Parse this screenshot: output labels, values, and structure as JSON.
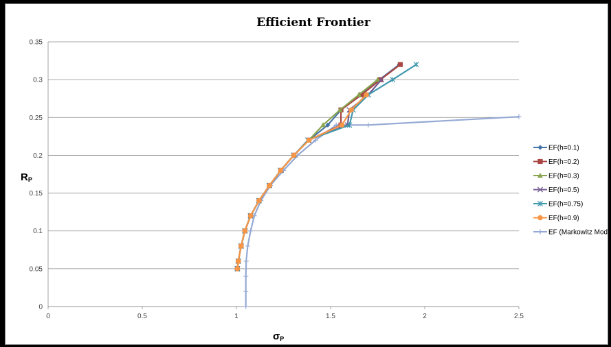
{
  "chart_data": {
    "type": "line",
    "title": "Efficient Frontier",
    "xlabel_main": "σ",
    "xlabel_sub": "P",
    "ylabel_main": "R",
    "ylabel_sub": "P",
    "xlim": [
      0,
      2.5
    ],
    "ylim": [
      0,
      0.35
    ],
    "x_ticks": [
      "0",
      "0.5",
      "1",
      "1.5",
      "2",
      "2.5"
    ],
    "x_tick_values": [
      0,
      0.5,
      1,
      1.5,
      2,
      2.5
    ],
    "y_ticks": [
      "0",
      "0.05",
      "0.1",
      "0.15",
      "0.2",
      "0.25",
      "0.3",
      "0.35"
    ],
    "y_tick_values": [
      0,
      0.05,
      0.1,
      0.15,
      0.2,
      0.25,
      0.3,
      0.35
    ],
    "grid": "horizontal",
    "legend_position": "right",
    "series": [
      {
        "name": "EF(h=0.1)",
        "color": "#4572a7",
        "marker": "diamond",
        "points": [
          [
            1.005,
            0.05
          ],
          [
            1.01,
            0.06
          ],
          [
            1.025,
            0.08
          ],
          [
            1.045,
            0.1
          ],
          [
            1.075,
            0.12
          ],
          [
            1.12,
            0.14
          ],
          [
            1.175,
            0.16
          ],
          [
            1.235,
            0.18
          ],
          [
            1.305,
            0.2
          ],
          [
            1.385,
            0.22
          ],
          [
            1.485,
            0.24
          ],
          [
            1.555,
            0.26
          ],
          [
            1.655,
            0.28
          ],
          [
            1.76,
            0.3
          ],
          [
            1.865,
            0.32
          ]
        ]
      },
      {
        "name": "EF(h=0.2)",
        "color": "#aa4643",
        "marker": "square",
        "points": [
          [
            1.005,
            0.05
          ],
          [
            1.01,
            0.06
          ],
          [
            1.025,
            0.08
          ],
          [
            1.045,
            0.1
          ],
          [
            1.075,
            0.12
          ],
          [
            1.12,
            0.14
          ],
          [
            1.175,
            0.16
          ],
          [
            1.235,
            0.18
          ],
          [
            1.305,
            0.2
          ],
          [
            1.385,
            0.22
          ],
          [
            1.555,
            0.24
          ],
          [
            1.555,
            0.26
          ],
          [
            1.665,
            0.28
          ],
          [
            1.765,
            0.3
          ],
          [
            1.87,
            0.32
          ]
        ]
      },
      {
        "name": "EF(h=0.3)",
        "color": "#89a54e",
        "marker": "triangle",
        "points": [
          [
            1.005,
            0.05
          ],
          [
            1.01,
            0.06
          ],
          [
            1.025,
            0.08
          ],
          [
            1.045,
            0.1
          ],
          [
            1.075,
            0.12
          ],
          [
            1.12,
            0.14
          ],
          [
            1.175,
            0.16
          ],
          [
            1.235,
            0.18
          ],
          [
            1.305,
            0.2
          ],
          [
            1.385,
            0.22
          ],
          [
            1.46,
            0.24
          ],
          [
            1.55,
            0.26
          ],
          [
            1.65,
            0.28
          ],
          [
            1.75,
            0.3
          ]
        ]
      },
      {
        "name": "EF(h=0.5)",
        "color": "#71588f",
        "marker": "x",
        "points": [
          [
            1.005,
            0.05
          ],
          [
            1.01,
            0.06
          ],
          [
            1.025,
            0.08
          ],
          [
            1.045,
            0.1
          ],
          [
            1.075,
            0.12
          ],
          [
            1.12,
            0.14
          ],
          [
            1.175,
            0.16
          ],
          [
            1.235,
            0.18
          ],
          [
            1.305,
            0.2
          ],
          [
            1.38,
            0.22
          ],
          [
            1.59,
            0.24
          ],
          [
            1.6,
            0.26
          ],
          [
            1.7,
            0.28
          ],
          [
            1.77,
            0.3
          ]
        ]
      },
      {
        "name": "EF(h=0.75)",
        "color": "#4198af",
        "marker": "asterisk",
        "points": [
          [
            1.005,
            0.05
          ],
          [
            1.01,
            0.06
          ],
          [
            1.025,
            0.08
          ],
          [
            1.045,
            0.1
          ],
          [
            1.075,
            0.12
          ],
          [
            1.12,
            0.14
          ],
          [
            1.175,
            0.16
          ],
          [
            1.235,
            0.18
          ],
          [
            1.305,
            0.2
          ],
          [
            1.38,
            0.22
          ],
          [
            1.6,
            0.24
          ],
          [
            1.62,
            0.26
          ],
          [
            1.7,
            0.28
          ],
          [
            1.83,
            0.3
          ],
          [
            1.955,
            0.32
          ]
        ]
      },
      {
        "name": "EF(h=0.9)",
        "color": "#f79646",
        "marker": "circle",
        "points": [
          [
            1.005,
            0.05
          ],
          [
            1.01,
            0.06
          ],
          [
            1.025,
            0.08
          ],
          [
            1.045,
            0.1
          ],
          [
            1.075,
            0.12
          ],
          [
            1.12,
            0.14
          ],
          [
            1.175,
            0.16
          ],
          [
            1.235,
            0.18
          ],
          [
            1.305,
            0.2
          ],
          [
            1.385,
            0.22
          ],
          [
            1.56,
            0.24
          ],
          [
            1.61,
            0.26
          ],
          [
            1.69,
            0.28
          ]
        ]
      },
      {
        "name": "EF (Markowitz Model)",
        "color": "#94a9d4",
        "marker": "plus",
        "points": [
          [
            1.05,
            0.0
          ],
          [
            1.05,
            0.02
          ],
          [
            1.05,
            0.04
          ],
          [
            1.052,
            0.06
          ],
          [
            1.06,
            0.08
          ],
          [
            1.075,
            0.1
          ],
          [
            1.095,
            0.12
          ],
          [
            1.13,
            0.14
          ],
          [
            1.18,
            0.16
          ],
          [
            1.25,
            0.18
          ],
          [
            1.325,
            0.2
          ],
          [
            1.42,
            0.22
          ],
          [
            1.53,
            0.24
          ],
          [
            1.7,
            0.24
          ],
          [
            2.5,
            0.251
          ]
        ]
      }
    ]
  }
}
